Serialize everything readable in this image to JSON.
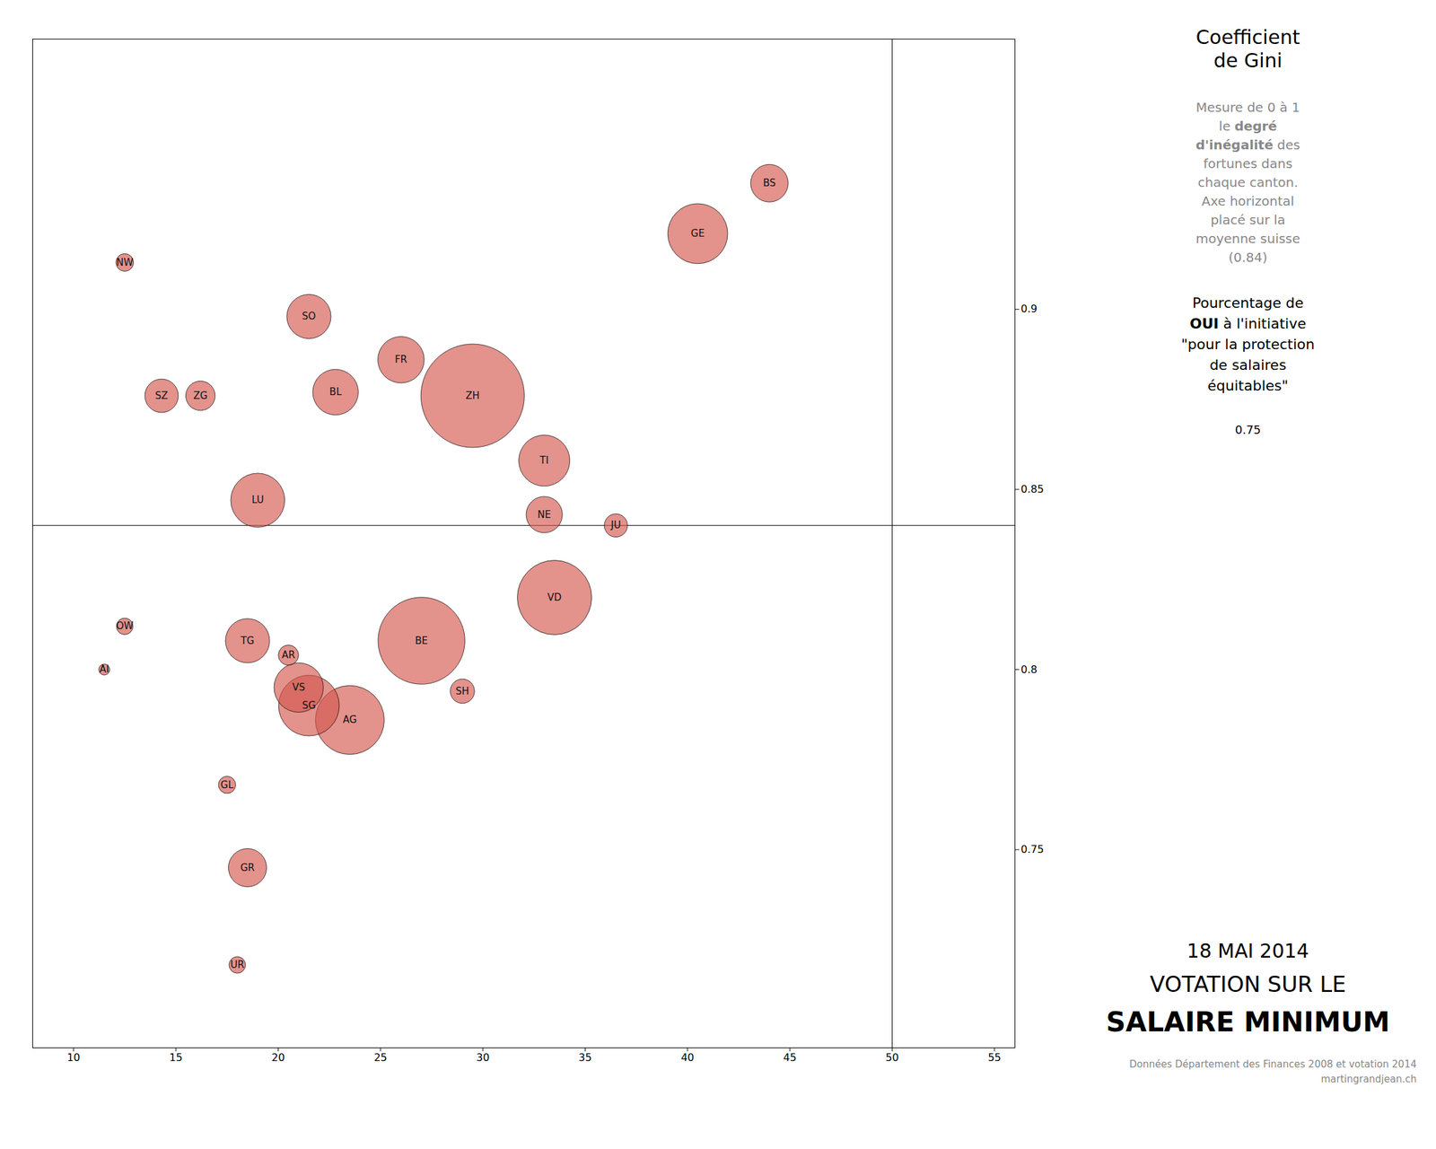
{
  "chart_data": {
    "type": "scatter",
    "title": [
      "18 MAI 2014",
      "VOTATION SUR LE",
      "SALAIRE MINIMUM"
    ],
    "annotations": [
      [
        "Coefficient\nde Gini"
      ],
      [
        "Mesure de 0 à 1\nle ",
        "degré\nd'inégalité",
        " des\nfortunes dans\nchaque canton.\nAxe horizontal\nplacé sur la\nmoyenne suisse\n(0.84)"
      ],
      [
        "Pourcentage de\n",
        "OUI",
        " à l'initiative\n\"pour la protection\nde salaires\néquitables\""
      ],
      [
        "0.75"
      ]
    ],
    "source": "Données Département des Finances 2008 et votation 2014\nmartingrandjean.ch",
    "labels": [
      "NW",
      "SZ",
      "ZG",
      "LU",
      "SO",
      "BL",
      "FR",
      "ZH",
      "TI",
      "NE",
      "JU",
      "GE",
      "BS",
      "TG",
      "AR",
      "OW",
      "AI",
      "VS",
      "SG",
      "AG",
      "BE",
      "SH",
      "VD",
      "GL",
      "GR",
      "UR"
    ],
    "x": [
      12.5,
      14.3,
      16.2,
      19.0,
      21.5,
      22.8,
      26.0,
      29.5,
      33.0,
      33.0,
      36.5,
      40.5,
      44.0,
      18.5,
      20.5,
      12.5,
      11.5,
      21.0,
      21.5,
      23.5,
      27.0,
      29.0,
      33.5,
      17.5,
      18.5,
      18.0
    ],
    "values": [
      0.913,
      0.876,
      0.876,
      0.847,
      0.898,
      0.877,
      0.886,
      0.876,
      0.858,
      0.843,
      0.84,
      0.921,
      0.935,
      0.808,
      0.804,
      0.812,
      0.8,
      0.795,
      0.79,
      0.786,
      0.808,
      0.794,
      0.82,
      0.768,
      0.745,
      0.718
    ],
    "sizes": [
      41000,
      148000,
      114000,
      385000,
      258000,
      275000,
      285000,
      1415000,
      345000,
      174000,
      71000,
      475000,
      186000,
      258000,
      54000,
      36000,
      16000,
      322000,
      487000,
      626000,
      998000,
      78000,
      730000,
      39000,
      193000,
      36000
    ],
    "color": "#d4574f",
    "hline": 0.84,
    "vline": 50,
    "xlim": [
      8,
      56
    ],
    "ylim": [
      0.695,
      0.975
    ],
    "xticks": [
      10,
      15,
      20,
      25,
      30,
      35,
      40,
      45,
      50,
      55
    ],
    "yticks": [
      0.75,
      0.8,
      0.85,
      0.9
    ],
    "grid": false
  }
}
